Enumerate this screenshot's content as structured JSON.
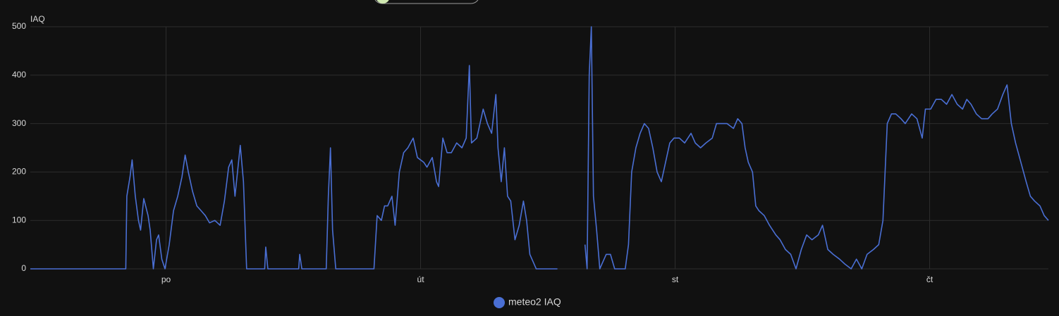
{
  "chart_data": {
    "type": "line",
    "y_label": "IAQ",
    "x": [
      -12.8,
      -3.8,
      -3.7,
      -3.4,
      -3.2,
      -2.9,
      -2.6,
      -2.4,
      -2.1,
      -1.7,
      -1.5,
      -1.2,
      -0.9,
      -0.7,
      -0.4,
      -0.1,
      0.3,
      0.7,
      1.1,
      1.5,
      1.8,
      2.1,
      2.5,
      2.9,
      3.3,
      3.7,
      4.1,
      4.6,
      5.1,
      5.5,
      5.9,
      6.2,
      6.5,
      7.0,
      7.3,
      7.6,
      9.3,
      9.4,
      9.6,
      12.5,
      12.6,
      12.8,
      15.1,
      15.3,
      15.5,
      15.7,
      16.0,
      19.6,
      19.9,
      20.3,
      20.6,
      20.9,
      21.3,
      21.6,
      22.0,
      22.4,
      22.8,
      23.3,
      23.7,
      24.3,
      24.6,
      25.1,
      25.5,
      25.7,
      26.1,
      26.5,
      26.9,
      27.4,
      27.9,
      28.3,
      28.6,
      28.8,
      29.3,
      29.6,
      29.9,
      30.3,
      30.7,
      31.1,
      31.3,
      31.6,
      31.9,
      32.2,
      32.5,
      32.9,
      33.3,
      33.7,
      34.0,
      34.3,
      34.7,
      34.9,
      36.9,
      37.5,
      39.5,
      39.7,
      39.9,
      40.1,
      40.3,
      40.6,
      40.9,
      41.5,
      41.9,
      42.3,
      43.3,
      43.6,
      43.9,
      44.3,
      44.7,
      45.1,
      45.5,
      45.9,
      46.3,
      46.7,
      47.1,
      47.5,
      47.9,
      48.4,
      48.9,
      49.5,
      49.9,
      50.4,
      50.9,
      51.5,
      51.9,
      52.4,
      52.9,
      53.5,
      53.9,
      54.3,
      54.6,
      54.9,
      55.3,
      55.6,
      55.9,
      56.4,
      56.9,
      57.5,
      57.9,
      58.4,
      58.9,
      59.4,
      59.9,
      60.4,
      60.9,
      61.5,
      61.9,
      62.4,
      62.9,
      63.5,
      64.0,
      64.6,
      65.1,
      65.6,
      66.1,
      66.7,
      67.2,
      67.6,
      68.0,
      68.4,
      68.8,
      69.3,
      69.7,
      70.3,
      70.8,
      71.3,
      71.6,
      72.1,
      72.6,
      73.1,
      73.6,
      74.1,
      74.6,
      75.1,
      75.5,
      75.9,
      76.4,
      76.9,
      77.5,
      77.9,
      78.4,
      78.9,
      79.3,
      79.7,
      80.1,
      80.6,
      81.1,
      81.5,
      81.9,
      82.4,
      82.8,
      83.2
    ],
    "series": [
      {
        "name": "meteo2 IAQ",
        "color": "#4a6fd4",
        "values": [
          0,
          0,
          150,
          190,
          225,
          150,
          100,
          80,
          145,
          110,
          80,
          0,
          60,
          70,
          20,
          0,
          50,
          120,
          150,
          190,
          235,
          200,
          160,
          130,
          120,
          110,
          95,
          100,
          90,
          140,
          210,
          225,
          150,
          255,
          180,
          0,
          0,
          45,
          0,
          0,
          30,
          0,
          0,
          150,
          250,
          80,
          0,
          0,
          110,
          100,
          130,
          130,
          150,
          90,
          200,
          240,
          250,
          270,
          230,
          220,
          210,
          230,
          180,
          170,
          270,
          240,
          240,
          260,
          250,
          270,
          420,
          260,
          270,
          300,
          330,
          300,
          280,
          360,
          250,
          180,
          250,
          150,
          140,
          60,
          90,
          140,
          100,
          30,
          10,
          0,
          0,
          null,
          50,
          0,
          400,
          500,
          150,
          80,
          0,
          30,
          30,
          0,
          0,
          50,
          200,
          250,
          280,
          300,
          290,
          250,
          200,
          180,
          220,
          260,
          270,
          270,
          260,
          280,
          260,
          250,
          260,
          270,
          300,
          300,
          300,
          290,
          310,
          300,
          250,
          220,
          200,
          130,
          120,
          110,
          90,
          70,
          60,
          40,
          30,
          0,
          40,
          70,
          60,
          70,
          90,
          40,
          30,
          20,
          10,
          0,
          20,
          0,
          30,
          40,
          50,
          100,
          300,
          320,
          320,
          310,
          300,
          320,
          310,
          270,
          330,
          330,
          350,
          350,
          340,
          360,
          340,
          330,
          350,
          340,
          320,
          310,
          310,
          320,
          330,
          360,
          380,
          300,
          260,
          220,
          180,
          150,
          140,
          130,
          110,
          100
        ]
      }
    ],
    "xlim": [
      -12.8,
      83.2
    ],
    "xticks": [
      {
        "value": 0,
        "label": "po"
      },
      {
        "value": 24,
        "label": "út"
      },
      {
        "value": 48,
        "label": "st"
      },
      {
        "value": 72,
        "label": "čt"
      }
    ],
    "ylim": [
      0,
      500
    ],
    "yticks": [
      0,
      100,
      200,
      300,
      400,
      500
    ],
    "grid": true,
    "legend": "bottom"
  }
}
